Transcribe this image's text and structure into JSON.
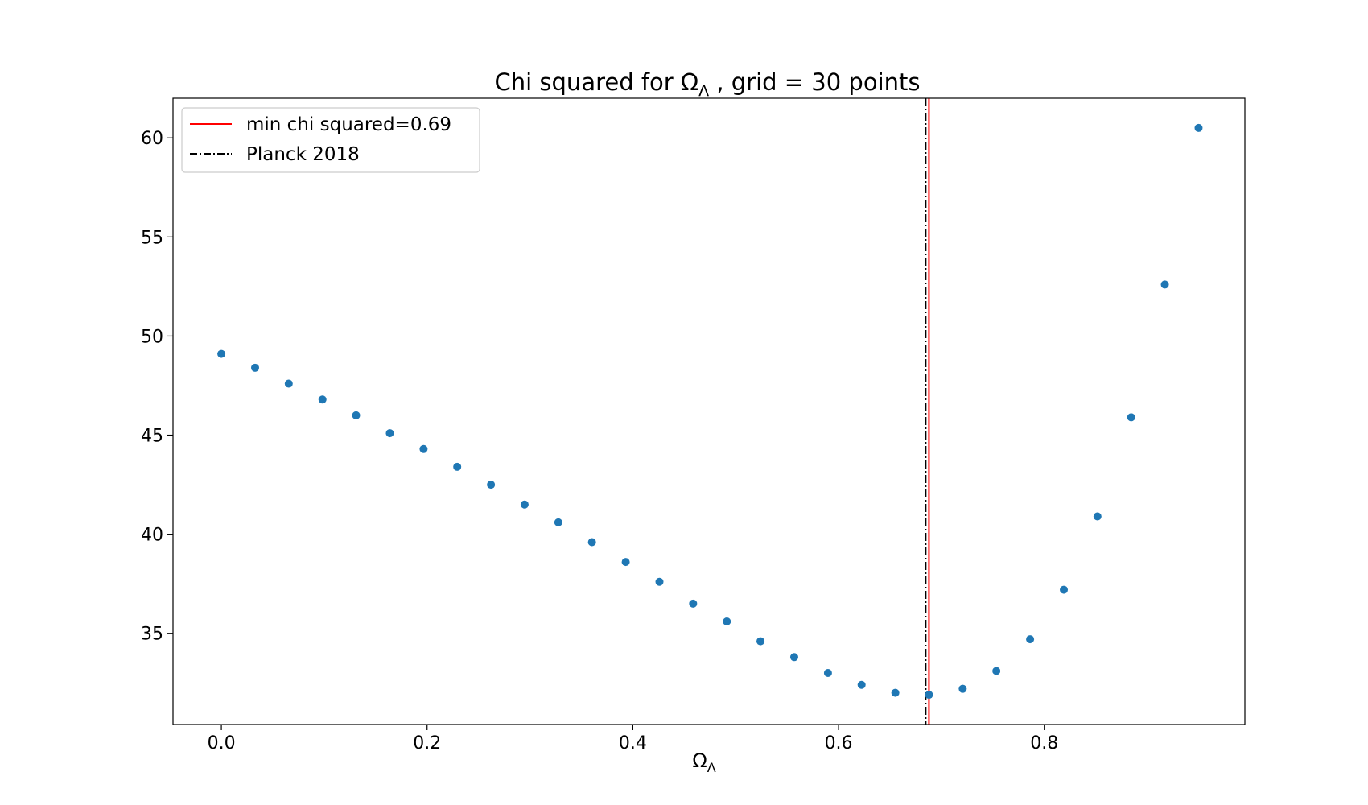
{
  "chart_data": {
    "type": "scatter",
    "title_main": "Chi squared for Ω",
    "title_sub": "Λ",
    "title_rest": " , grid = 30 points",
    "xlabel_main": "Ω",
    "xlabel_sub": "Λ",
    "ylabel": "",
    "xlim": [
      -0.047,
      0.995
    ],
    "ylim": [
      30.4,
      62.0
    ],
    "xticks": [
      0.0,
      0.2,
      0.4,
      0.6,
      0.8
    ],
    "xtick_labels": [
      "0.0",
      "0.2",
      "0.4",
      "0.6",
      "0.8"
    ],
    "yticks": [
      35,
      40,
      45,
      50,
      55,
      60
    ],
    "ytick_labels": [
      "35",
      "40",
      "45",
      "50",
      "55",
      "60"
    ],
    "grid": false,
    "legend_position": "top-left",
    "marker_color": "#1f77b4",
    "x": [
      0.0,
      0.0328,
      0.0655,
      0.0983,
      0.131,
      0.1638,
      0.1966,
      0.2293,
      0.2621,
      0.2948,
      0.3276,
      0.3603,
      0.3931,
      0.4259,
      0.4586,
      0.4914,
      0.5241,
      0.5569,
      0.5897,
      0.6224,
      0.6552,
      0.6879,
      0.7207,
      0.7534,
      0.7862,
      0.819,
      0.8517,
      0.8845,
      0.9172,
      0.95
    ],
    "y": [
      49.1,
      48.4,
      47.6,
      46.8,
      46.0,
      45.1,
      44.3,
      43.4,
      42.5,
      41.5,
      40.6,
      39.6,
      38.6,
      37.6,
      36.5,
      35.6,
      34.6,
      33.8,
      33.0,
      32.4,
      32.0,
      31.9,
      32.2,
      33.1,
      34.7,
      37.2,
      40.9,
      45.9,
      52.6,
      60.5
    ],
    "vlines": [
      {
        "name": "min chi squared=0.69",
        "x": 0.6879,
        "color": "#ff0000",
        "style": "solid"
      },
      {
        "name": "Planck 2018",
        "x": 0.6847,
        "color": "#000000",
        "style": "dashdot"
      }
    ]
  }
}
